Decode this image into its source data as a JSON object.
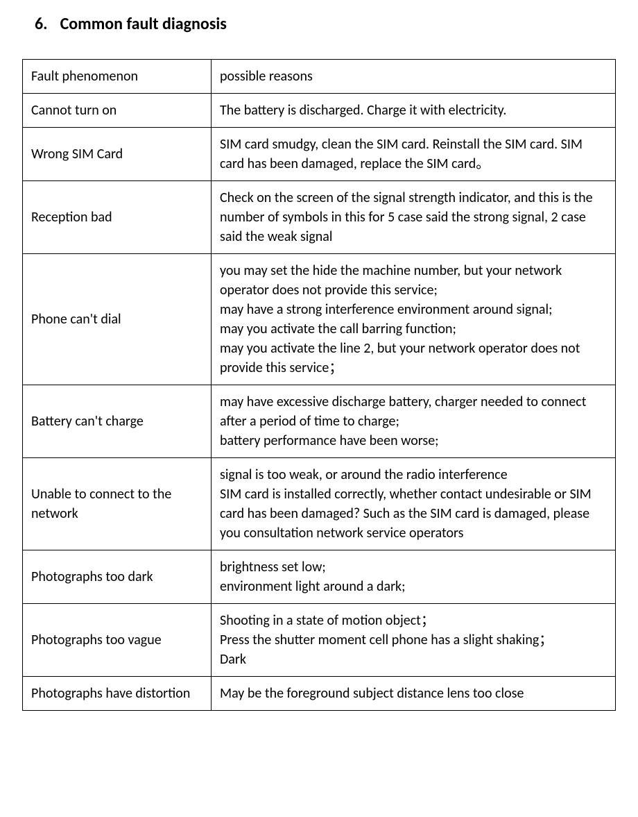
{
  "heading": {
    "number": "6.",
    "title": "Common fault diagnosis"
  },
  "table": {
    "columns": [
      "Fault phenomenon",
      "possible reasons"
    ],
    "rows": [
      {
        "fault": "Cannot turn on",
        "reason": "The battery is discharged. Charge it with electricity."
      },
      {
        "fault": "Wrong SIM Card",
        "reason": "SIM card smudgy, clean the SIM card. Reinstall the SIM card. SIM card has been damaged, replace the SIM card。"
      },
      {
        "fault": "Reception bad",
        "reason": "Check on the screen of the signal strength indicator, and this is the number of symbols in this for 5 case said the strong signal, 2 case said the weak signal"
      },
      {
        "fault": "Phone can't dial",
        "reason": "you may set the hide the machine number, but your network operator does not provide this service;\nmay have a strong interference environment around signal;\nmay you activate the call barring function;\nmay you activate the line 2, but your network operator does not provide this service；"
      },
      {
        "fault": "Battery can't charge",
        "reason": "may have excessive discharge battery, charger needed to connect after a period of time to charge;\nbattery performance have been worse;"
      },
      {
        "fault": "Unable to connect to the network",
        "reason": "signal is too weak, or around the radio interference\nSIM card is installed correctly, whether contact undesirable or SIM card has been damaged? Such as the SIM card is damaged, please you consultation network service operators"
      },
      {
        "fault": "Photographs too dark",
        "reason": "brightness set low;\nenvironment light around a dark;"
      },
      {
        "fault": "Photographs too vague",
        "reason": "Shooting in a state of motion object；\nPress the shutter moment cell phone has a slight shaking；\nDark"
      },
      {
        "fault": "Photographs have distortion",
        "reason": "May be the foreground subject distance lens too close"
      }
    ]
  },
  "styles": {
    "background_color": "#ffffff",
    "text_color": "#000000",
    "border_color": "#000000",
    "heading_fontsize": 24,
    "cell_fontsize": 20,
    "col_left_width": 272
  }
}
